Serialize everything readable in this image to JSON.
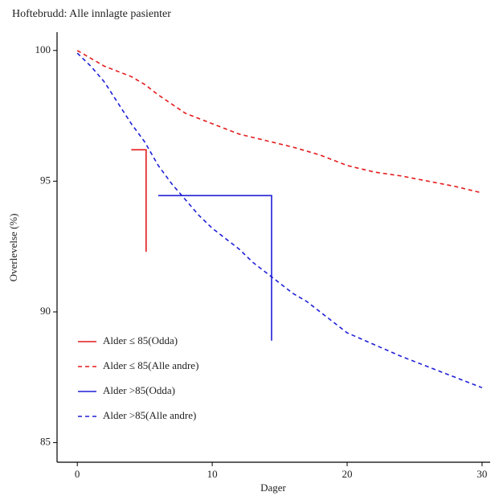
{
  "chart_data": {
    "type": "line",
    "title": "Hoftebrudd: Alle innlagte pasienter",
    "x_label": "Dager",
    "y_label": "Overlevelse (%)",
    "xlim": [
      -1.5,
      30.6
    ],
    "ylim": [
      84.25,
      100.7
    ],
    "xticks": [
      0,
      10,
      20,
      30
    ],
    "yticks": [
      85,
      90,
      95,
      100
    ],
    "legend": "bottom-left",
    "grid": false,
    "series": [
      {
        "name": "Alder ≤ 85(Odda)",
        "color": "#e41a1c",
        "dash": false,
        "step": true,
        "x": [
          4,
          5.1
        ],
        "values": [
          96.2,
          92.3
        ]
      },
      {
        "name": "Alder ≤ 85(Alle andre)",
        "color": "#e41a1c",
        "dash": true,
        "step": false,
        "x": [
          0,
          2,
          4,
          5,
          6,
          8,
          10,
          12,
          14,
          16,
          18,
          20,
          22,
          24,
          26,
          28,
          30
        ],
        "values": [
          100,
          99.4,
          99,
          98.7,
          98.3,
          97.6,
          97.2,
          96.8,
          96.55,
          96.3,
          96,
          95.6,
          95.35,
          95.2,
          95,
          94.8,
          94.55
        ]
      },
      {
        "name": "Alder >85(Odda)",
        "color": "#1f1fd6",
        "dash": false,
        "step": true,
        "x": [
          6,
          14.4
        ],
        "values": [
          94.45,
          88.9
        ]
      },
      {
        "name": "Alder >85(Alle andre)",
        "color": "#1f1fd6",
        "dash": true,
        "step": false,
        "x": [
          0,
          1,
          2,
          3,
          4,
          5,
          6,
          7,
          8,
          9,
          10,
          11,
          12,
          13,
          14,
          15,
          16,
          17,
          18,
          19,
          20,
          22,
          24,
          26,
          28,
          30
        ],
        "values": [
          99.9,
          99.4,
          98.8,
          98,
          97.2,
          96.5,
          95.6,
          94.9,
          94.3,
          93.7,
          93.2,
          92.8,
          92.4,
          91.9,
          91.5,
          91.1,
          90.7,
          90.4,
          90,
          89.6,
          89.2,
          88.75,
          88.3,
          87.9,
          87.5,
          87.1
        ]
      }
    ]
  }
}
